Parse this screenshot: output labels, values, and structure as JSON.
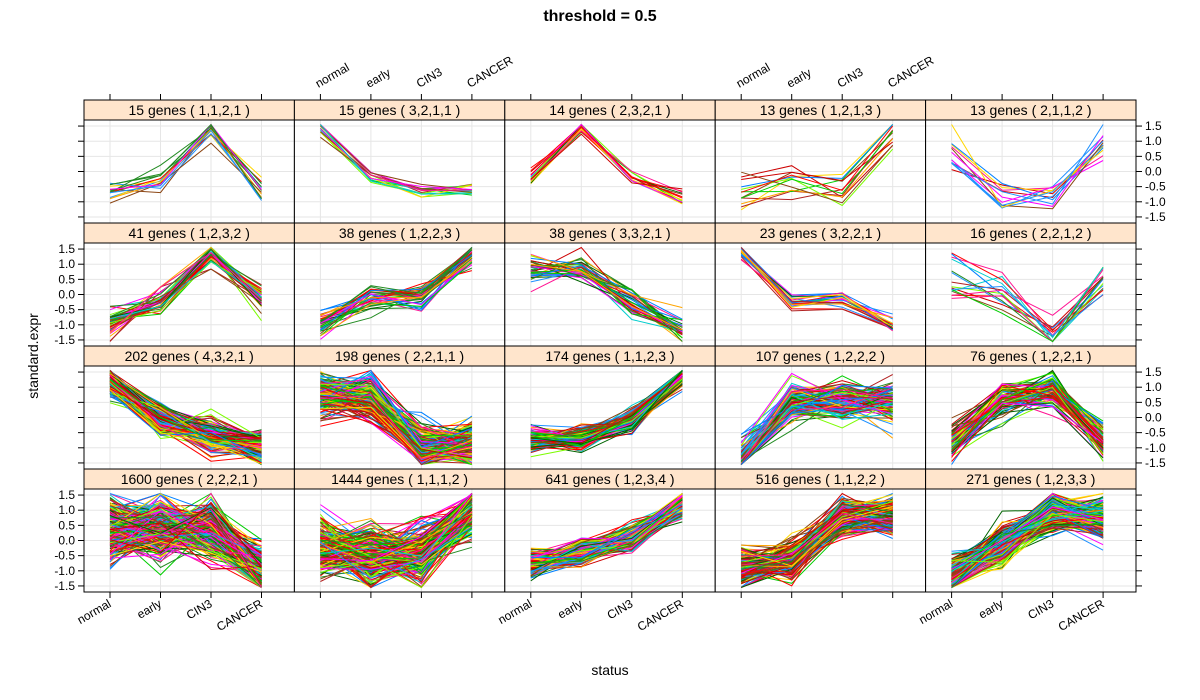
{
  "chart_data": {
    "type": "line",
    "title": "threshold = 0.5",
    "xlabel": "status",
    "ylabel": "standard.expr",
    "categories": [
      "normal",
      "early",
      "CIN3",
      "CANCER"
    ],
    "ylim": [
      -1.7,
      1.7
    ],
    "yticks": [
      "-1.5",
      "-1.0",
      "-0.5",
      "0.0",
      "0.5",
      "1.0",
      "1.5"
    ],
    "ytick_values": [
      -1.5,
      -1.0,
      -0.5,
      0.0,
      0.5,
      1.0,
      1.5
    ],
    "grid": true,
    "layout": "5 columns x 4 rows (lattice)",
    "colors": [
      "#000000",
      "#ff0000",
      "#00cd00",
      "#0080ff",
      "#00cdcd",
      "#ff00ff",
      "#ffa500",
      "#006400",
      "#b22222",
      "#ff1493",
      "#1e90ff",
      "#7cfc00",
      "#cd0000",
      "#228b22",
      "#ffd700",
      "#8b4513"
    ],
    "panels": [
      {
        "label": "15 genes ( 1,1,2,1 )",
        "genes": 15,
        "pattern": [
          1,
          1,
          2,
          1
        ],
        "center": [
          -0.6,
          -0.3,
          1.4,
          -0.5
        ],
        "spread": 0.25
      },
      {
        "label": "15 genes ( 3,2,1,1 )",
        "genes": 15,
        "pattern": [
          3,
          2,
          1,
          1
        ],
        "center": [
          1.4,
          -0.2,
          -0.6,
          -0.6
        ],
        "spread": 0.12
      },
      {
        "label": "14 genes ( 2,3,2,1 )",
        "genes": 14,
        "pattern": [
          2,
          3,
          2,
          1
        ],
        "center": [
          -0.2,
          1.4,
          -0.2,
          -0.9
        ],
        "spread": 0.15
      },
      {
        "label": "13 genes ( 1,2,1,3 )",
        "genes": 13,
        "pattern": [
          1,
          2,
          1,
          3
        ],
        "center": [
          -0.6,
          -0.2,
          -0.6,
          1.2
        ],
        "spread": 0.3
      },
      {
        "label": "13 genes ( 2,1,1,2 )",
        "genes": 13,
        "pattern": [
          2,
          1,
          1,
          2
        ],
        "center": [
          0.7,
          -0.8,
          -0.8,
          0.9
        ],
        "spread": 0.35
      },
      {
        "label": "41 genes ( 1,2,3,2 )",
        "genes": 41,
        "pattern": [
          1,
          2,
          3,
          2
        ],
        "center": [
          -1.0,
          -0.2,
          1.3,
          -0.1
        ],
        "spread": 0.22
      },
      {
        "label": "38 genes ( 1,2,2,3 )",
        "genes": 38,
        "pattern": [
          1,
          2,
          2,
          3
        ],
        "center": [
          -1.0,
          -0.1,
          -0.1,
          1.3
        ],
        "spread": 0.2
      },
      {
        "label": "38 genes ( 3,3,2,1 )",
        "genes": 38,
        "pattern": [
          3,
          3,
          2,
          1
        ],
        "center": [
          0.8,
          0.8,
          -0.3,
          -1.2
        ],
        "spread": 0.25
      },
      {
        "label": "23 genes ( 3,2,2,1 )",
        "genes": 23,
        "pattern": [
          3,
          2,
          2,
          1
        ],
        "center": [
          1.4,
          -0.2,
          -0.1,
          -1.0
        ],
        "spread": 0.15
      },
      {
        "label": "16 genes ( 2,2,1,2 )",
        "genes": 16,
        "pattern": [
          2,
          2,
          1,
          2
        ],
        "center": [
          0.7,
          0.2,
          -1.4,
          0.3
        ],
        "spread": 0.4
      },
      {
        "label": "202 genes ( 4,3,2,1 )",
        "genes": 202,
        "pattern": [
          4,
          3,
          2,
          1
        ],
        "center": [
          1.2,
          -0.1,
          -0.6,
          -1.0
        ],
        "spread": 0.25
      },
      {
        "label": "198 genes ( 2,2,1,1 )",
        "genes": 198,
        "pattern": [
          2,
          2,
          1,
          1
        ],
        "center": [
          0.7,
          0.7,
          -1.0,
          -0.9
        ],
        "spread": 0.35
      },
      {
        "label": "174 genes ( 1,1,2,3 )",
        "genes": 174,
        "pattern": [
          1,
          1,
          2,
          3
        ],
        "center": [
          -0.7,
          -0.7,
          -0.1,
          1.4
        ],
        "spread": 0.18
      },
      {
        "label": "107 genes ( 1,2,2,2 )",
        "genes": 107,
        "pattern": [
          1,
          2,
          2,
          2
        ],
        "center": [
          -1.4,
          0.5,
          0.6,
          0.5
        ],
        "spread": 0.35
      },
      {
        "label": "76 genes ( 1,2,2,1 )",
        "genes": 76,
        "pattern": [
          1,
          2,
          2,
          1
        ],
        "center": [
          -0.8,
          0.6,
          0.9,
          -0.8
        ],
        "spread": 0.3
      },
      {
        "label": "1600 genes ( 2,2,2,1 )",
        "genes": 1600,
        "pattern": [
          2,
          2,
          2,
          1
        ],
        "center": [
          0.3,
          0.4,
          0.4,
          -1.1
        ],
        "spread": 0.5
      },
      {
        "label": "1444 genes ( 1,1,1,2 )",
        "genes": 1444,
        "pattern": [
          1,
          1,
          1,
          2
        ],
        "center": [
          -0.3,
          -0.5,
          -0.4,
          1.0
        ],
        "spread": 0.45
      },
      {
        "label": "641 genes ( 1,2,3,4 )",
        "genes": 641,
        "pattern": [
          1,
          2,
          3,
          4
        ],
        "center": [
          -0.8,
          -0.4,
          0.1,
          1.2
        ],
        "spread": 0.2
      },
      {
        "label": "516 genes ( 1,1,2,2 )",
        "genes": 516,
        "pattern": [
          1,
          1,
          2,
          2
        ],
        "center": [
          -0.9,
          -0.7,
          0.8,
          0.8
        ],
        "spread": 0.3
      },
      {
        "label": "271 genes ( 1,2,3,3 )",
        "genes": 271,
        "pattern": [
          1,
          2,
          3,
          3
        ],
        "center": [
          -1.2,
          -0.1,
          0.9,
          0.7
        ],
        "spread": 0.3
      }
    ]
  }
}
